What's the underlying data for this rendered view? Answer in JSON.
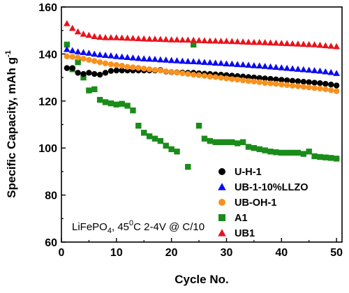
{
  "chart_data": {
    "type": "scatter",
    "xlabel": "Cycle No.",
    "ylabel": "Specific Capacity, mAh g",
    "ylabel_sup": "-1",
    "xlim": [
      0,
      51
    ],
    "ylim": [
      60,
      160
    ],
    "xticks": [
      0,
      10,
      20,
      30,
      40,
      50
    ],
    "yticks": [
      60,
      80,
      100,
      120,
      140,
      160
    ],
    "grid": false,
    "legend_position": "bottom-right",
    "annotation": {
      "main": "LiFePO",
      "sub": "4",
      "mid": ", 45",
      "sup": "0",
      "tail": "C 2-4V @ C/10"
    },
    "series": [
      {
        "name": "U-H-1",
        "marker": "circle",
        "color": "#000000",
        "x": [
          1,
          2,
          3,
          4,
          5,
          6,
          7,
          8,
          9,
          10,
          11,
          12,
          13,
          14,
          15,
          16,
          17,
          18,
          19,
          20,
          21,
          22,
          23,
          24,
          25,
          26,
          27,
          28,
          29,
          30,
          31,
          32,
          33,
          34,
          35,
          36,
          37,
          38,
          39,
          40,
          41,
          42,
          43,
          44,
          45,
          46,
          47,
          48,
          49,
          50
        ],
        "y": [
          134,
          134,
          132,
          131.5,
          132,
          131.5,
          131.2,
          132,
          132.8,
          133,
          133,
          133,
          133,
          133,
          133,
          133,
          133,
          133.2,
          132.5,
          132.3,
          132.2,
          132.1,
          132,
          132,
          131.8,
          131.6,
          131.5,
          131.3,
          131.2,
          131,
          130.8,
          130.6,
          130.4,
          130.2,
          130,
          129.8,
          129.6,
          129.4,
          129.2,
          129,
          128.8,
          128.6,
          128.4,
          128.2,
          128,
          127.8,
          127.6,
          127.3,
          127,
          126.6
        ]
      },
      {
        "name": "UB-1-10%LLZO",
        "marker": "triangle",
        "color": "#0b0bf0",
        "x": [
          1,
          2,
          3,
          4,
          5,
          6,
          7,
          8,
          9,
          10,
          11,
          12,
          13,
          14,
          15,
          16,
          17,
          18,
          19,
          20,
          21,
          22,
          23,
          24,
          25,
          26,
          27,
          28,
          29,
          30,
          31,
          32,
          33,
          34,
          35,
          36,
          37,
          38,
          39,
          40,
          41,
          42,
          43,
          44,
          45,
          46,
          47,
          48,
          49,
          50
        ],
        "y": [
          142,
          141.5,
          141,
          140.7,
          140.4,
          140,
          139.7,
          139.5,
          139.3,
          139,
          138.8,
          138.6,
          138.4,
          138.2,
          138,
          137.9,
          137.8,
          137.6,
          137.5,
          137.3,
          137.2,
          137,
          136.9,
          136.8,
          136.7,
          136.5,
          136.4,
          136.2,
          136.1,
          135.9,
          135.8,
          135.6,
          135.5,
          135.3,
          135.1,
          135,
          134.8,
          134.6,
          134.4,
          134.2,
          134,
          133.8,
          133.6,
          133.4,
          133.2,
          133,
          132.8,
          132.5,
          132.2,
          131.8
        ]
      },
      {
        "name": "UB-OH-1",
        "marker": "circle",
        "color": "#f7911f",
        "x": [
          1,
          2,
          3,
          4,
          5,
          6,
          7,
          8,
          9,
          10,
          11,
          12,
          13,
          14,
          15,
          16,
          17,
          18,
          19,
          20,
          21,
          22,
          23,
          24,
          25,
          26,
          27,
          28,
          29,
          30,
          31,
          32,
          33,
          34,
          35,
          36,
          37,
          38,
          39,
          40,
          41,
          42,
          43,
          44,
          45,
          46,
          47,
          48,
          49,
          50
        ],
        "y": [
          139,
          138.8,
          138.5,
          138,
          137.5,
          137,
          136.5,
          136,
          135.6,
          135.3,
          135,
          134.5,
          134.3,
          134.1,
          133.8,
          133.5,
          133.2,
          133,
          132.6,
          132.4,
          132.1,
          131.8,
          131.5,
          131.2,
          131,
          130.7,
          130.4,
          130.2,
          129.9,
          129.6,
          129.3,
          129.1,
          128.8,
          128.5,
          128.3,
          128,
          127.7,
          127.5,
          127.3,
          127,
          126.8,
          126.5,
          126.3,
          126,
          125.8,
          125.5,
          125.3,
          125,
          124.6,
          124.2
        ]
      },
      {
        "name": "A1",
        "marker": "square",
        "color": "#1a8c1a",
        "x": [
          1,
          2,
          3,
          4,
          5,
          6,
          7,
          8,
          9,
          10,
          11,
          12,
          13,
          14,
          15,
          16,
          17,
          18,
          19,
          20,
          21,
          23,
          24,
          25,
          26,
          27,
          28,
          29,
          30,
          31,
          32,
          33,
          34,
          35,
          36,
          37,
          38,
          39,
          40,
          41,
          42,
          43,
          44,
          45,
          46,
          47,
          48,
          49,
          50
        ],
        "y": [
          144,
          133.5,
          136.5,
          130,
          124.5,
          125,
          120.5,
          119.5,
          119,
          118.5,
          118.8,
          118,
          116,
          109.5,
          106.5,
          105,
          104,
          103,
          101,
          99.5,
          98.5,
          92,
          144,
          109.5,
          104,
          103,
          102.5,
          102.5,
          102.5,
          102.5,
          102,
          102.5,
          100.5,
          100,
          99.5,
          99,
          98.5,
          98.2,
          98,
          98,
          98,
          98,
          97.5,
          98.5,
          96.5,
          96.2,
          96,
          95.8,
          95.5
        ]
      },
      {
        "name": "UB1",
        "marker": "triangle",
        "color": "#e8131b",
        "x": [
          1,
          2,
          3,
          4,
          5,
          6,
          7,
          8,
          9,
          10,
          11,
          12,
          13,
          14,
          15,
          16,
          17,
          18,
          19,
          20,
          21,
          22,
          23,
          24,
          25,
          26,
          27,
          28,
          29,
          30,
          31,
          32,
          33,
          34,
          35,
          36,
          37,
          38,
          39,
          40,
          41,
          42,
          43,
          44,
          45,
          46,
          47,
          48,
          49,
          50
        ],
        "y": [
          153,
          151,
          149.5,
          148.5,
          148,
          147.5,
          147.2,
          147,
          147,
          147,
          146.9,
          146.8,
          146.7,
          146.6,
          146.5,
          146.4,
          146.4,
          146.3,
          146.2,
          146.1,
          146.1,
          146,
          146,
          145.9,
          145.8,
          145.7,
          145.6,
          145.6,
          145.5,
          145.5,
          145.4,
          145.3,
          145.2,
          145.1,
          145,
          145,
          144.9,
          144.8,
          144.7,
          144.6,
          144.5,
          144.4,
          144.3,
          144.2,
          144.1,
          144,
          143.8,
          143.6,
          143.4,
          143.2
        ]
      }
    ]
  }
}
